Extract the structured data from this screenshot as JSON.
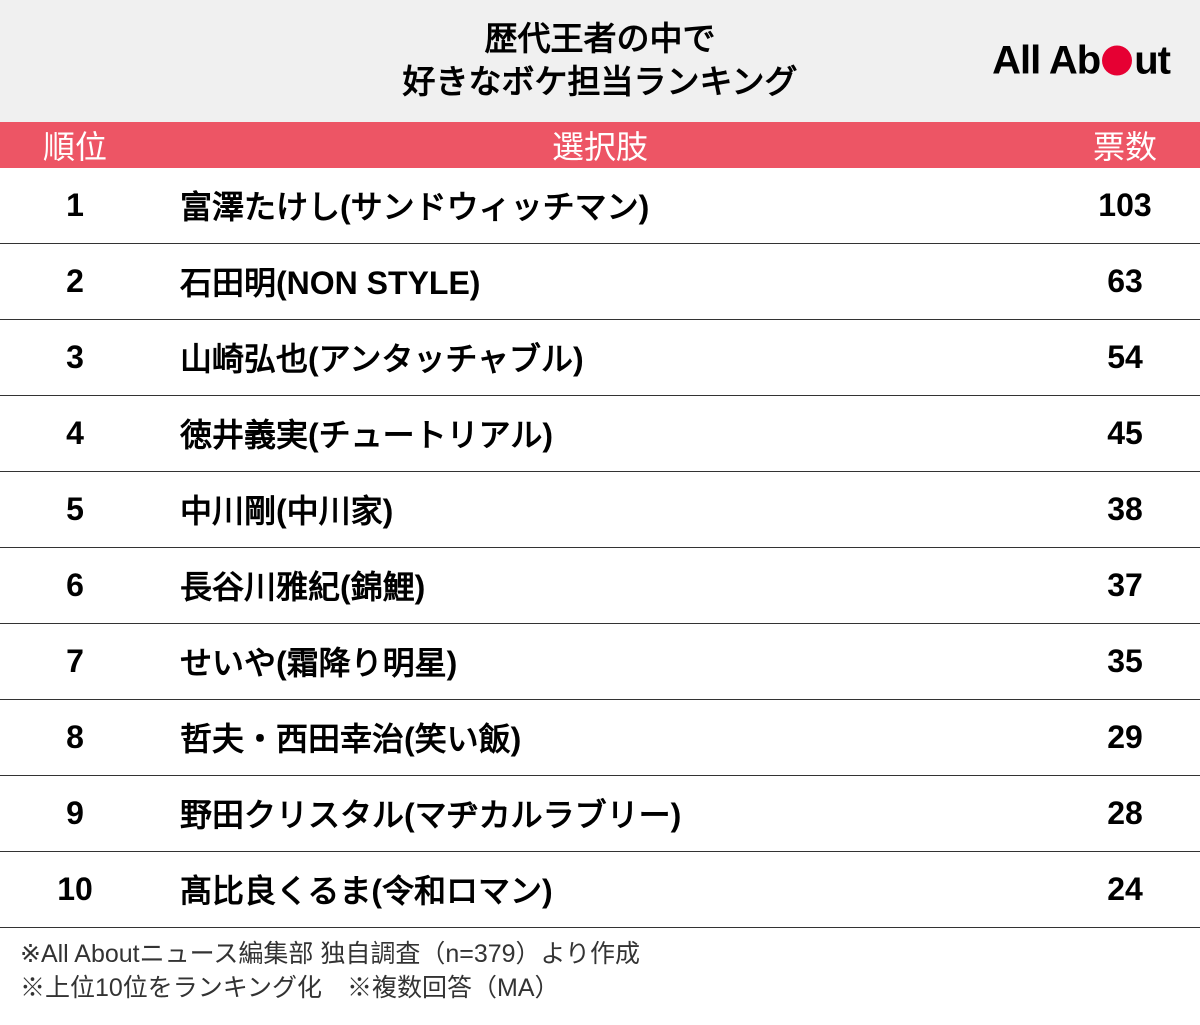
{
  "title": {
    "line1": "歴代王者の中で",
    "line2": "好きなボケ担当ランキング"
  },
  "logo": {
    "part1": "All Ab",
    "part2": "ut"
  },
  "table": {
    "columns": [
      "順位",
      "選択肢",
      "票数"
    ],
    "rows": [
      {
        "rank": "1",
        "choice": "富澤たけし(サンドウィッチマン)",
        "votes": "103"
      },
      {
        "rank": "2",
        "choice": "石田明(NON STYLE)",
        "votes": "63"
      },
      {
        "rank": "3",
        "choice": "山崎弘也(アンタッチャブル)",
        "votes": "54"
      },
      {
        "rank": "4",
        "choice": "徳井義実(チュートリアル)",
        "votes": "45"
      },
      {
        "rank": "5",
        "choice": "中川剛(中川家)",
        "votes": "38"
      },
      {
        "rank": "6",
        "choice": "長谷川雅紀(錦鯉)",
        "votes": "37"
      },
      {
        "rank": "7",
        "choice": "せいや(霜降り明星)",
        "votes": "35"
      },
      {
        "rank": "8",
        "choice": "哲夫・西田幸治(笑い飯)",
        "votes": "29"
      },
      {
        "rank": "9",
        "choice": "野田クリスタル(マヂカルラブリー)",
        "votes": "28"
      },
      {
        "rank": "10",
        "choice": "髙比良くるま(令和ロマン)",
        "votes": "24"
      }
    ]
  },
  "footer": {
    "line1": "※All Aboutニュース編集部 独自調査（n=379）より作成",
    "line2": "※上位10位をランキング化　※複数回答（MA）"
  },
  "styling": {
    "header_bg": "#f0f0f0",
    "table_header_bg": "#ed5565",
    "table_header_text": "#ffffff",
    "row_border": "#333333",
    "text_color": "#000000",
    "logo_dot_color": "#e60033",
    "title_fontsize": 33,
    "header_fontsize": 32,
    "row_fontsize": 32,
    "footer_fontsize": 25,
    "logo_fontsize": 40
  }
}
